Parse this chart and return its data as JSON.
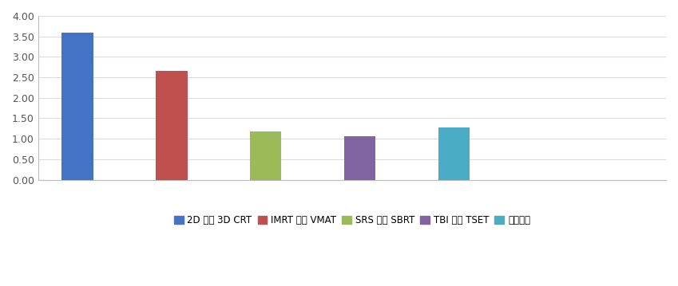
{
  "categories": [
    "2D 또는 3D CRT",
    "IMRT 또는 VMAT",
    "SRS 또는 SBRT",
    "TBI 또는 TSET",
    "근접치료"
  ],
  "values": [
    3.59,
    2.65,
    1.17,
    1.06,
    1.28
  ],
  "bar_colors": [
    "#4472C4",
    "#C0504D",
    "#9BBB59",
    "#8064A2",
    "#4BACC6"
  ],
  "ylim": [
    0,
    4.0
  ],
  "yticks": [
    0.0,
    0.5,
    1.0,
    1.5,
    2.0,
    2.5,
    3.0,
    3.5,
    4.0
  ],
  "ytick_labels": [
    "0.00",
    "0.50",
    "1.00",
    "1.50",
    "2.00",
    "2.50",
    "3.00",
    "3.50",
    "4.00"
  ],
  "grid_color": "#DCDCDC",
  "background_color": "#FFFFFF",
  "legend_labels": [
    "2D 또는 3D CRT",
    "IMRT 또는 VMAT",
    "SRS 또는 SBRT",
    "TBI 또는 TSET",
    "근접치료"
  ],
  "bar_width": 0.4,
  "font_size": 9,
  "xlim": [
    -0.5,
    7.5
  ],
  "x_positions": [
    0,
    1.2,
    2.4,
    3.6,
    4.8
  ]
}
